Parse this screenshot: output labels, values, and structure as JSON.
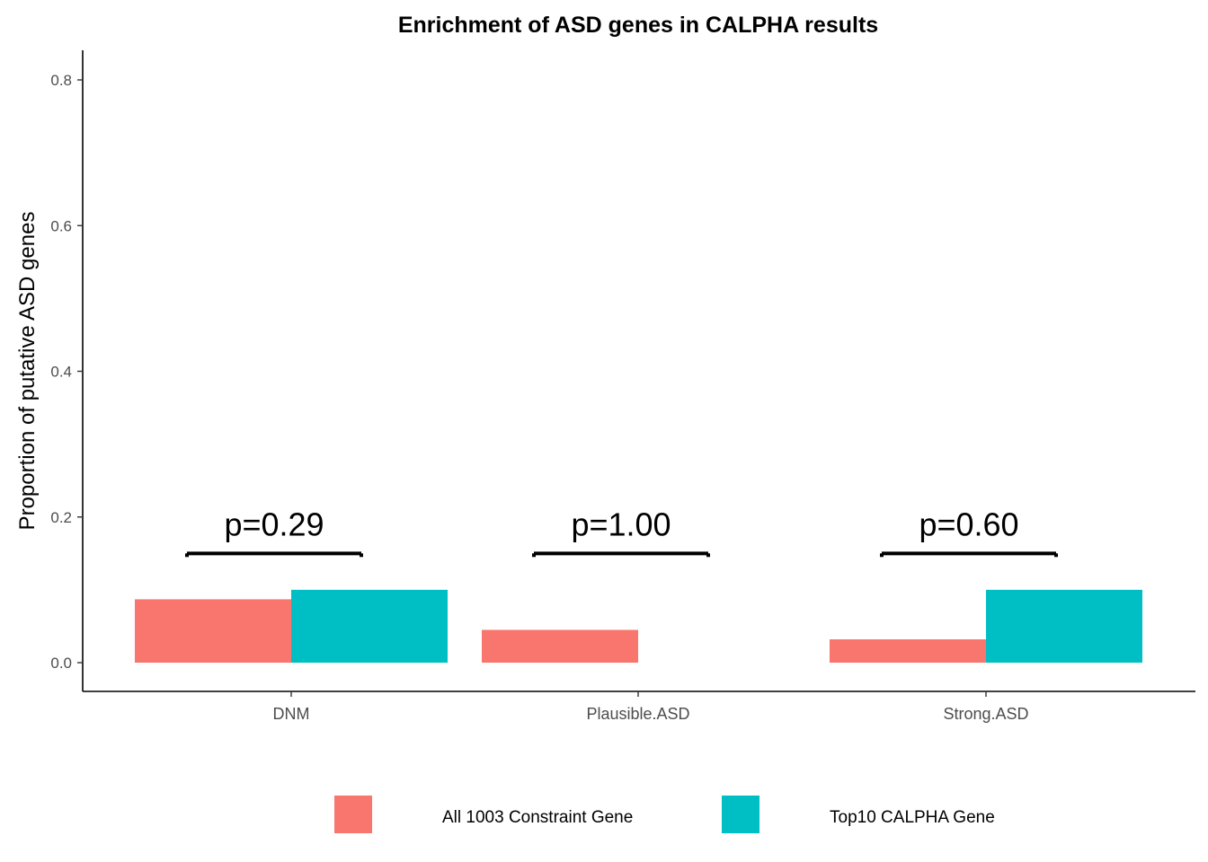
{
  "chart_data": {
    "type": "bar",
    "title": "Enrichment of ASD genes in CALPHA results",
    "xlabel": "",
    "ylabel": "Proportion of putative ASD genes",
    "categories": [
      "DNM",
      "Plausible.ASD",
      "Strong.ASD"
    ],
    "series": [
      {
        "name": "All 1003 Constraint Gene",
        "color": "#F8766D",
        "values": [
          0.087,
          0.045,
          0.032
        ]
      },
      {
        "name": "Top10 CALPHA Gene",
        "color": "#00BFC4",
        "values": [
          0.1,
          0.0,
          0.1
        ]
      }
    ],
    "ylim": [
      0,
      0.8
    ],
    "yticks": [
      0.0,
      0.2,
      0.4,
      0.6,
      0.8
    ],
    "ytick_labels": [
      "0.0",
      "0.2",
      "0.4",
      "0.6",
      "0.8"
    ],
    "annotations": [
      {
        "category": "DNM",
        "text": "p=0.29",
        "bracket_y": 0.15
      },
      {
        "category": "Plausible.ASD",
        "text": "p=1.00",
        "bracket_y": 0.15
      },
      {
        "category": "Strong.ASD",
        "text": "p=0.60",
        "bracket_y": 0.15
      }
    ],
    "grid": false,
    "legend_position": "bottom"
  }
}
